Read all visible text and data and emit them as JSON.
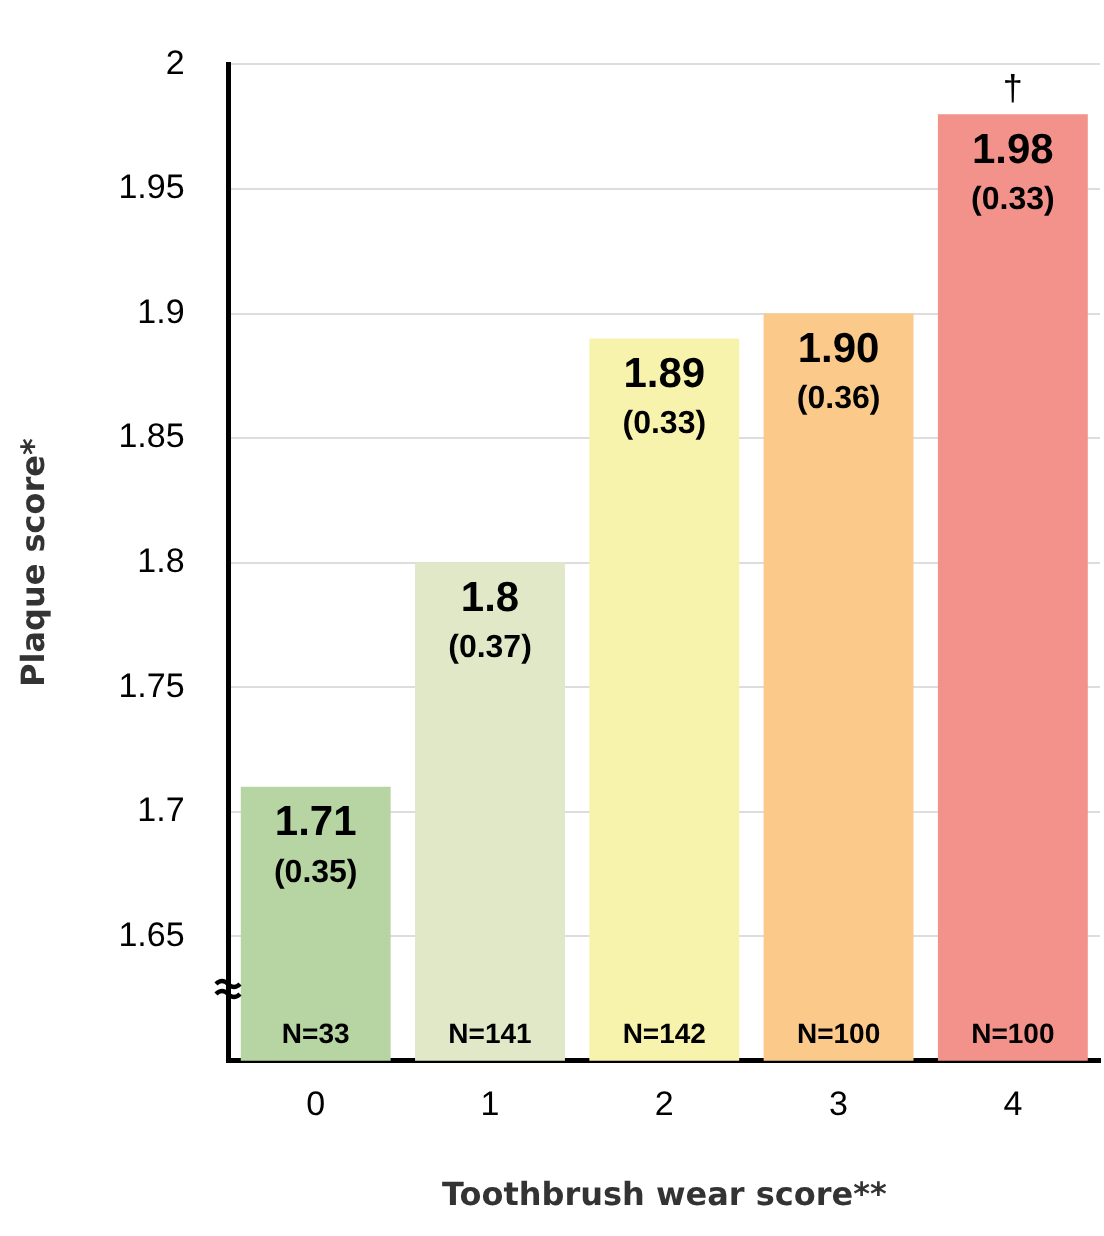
{
  "chart_data": {
    "type": "bar",
    "categories": [
      "0",
      "1",
      "2",
      "3",
      "4"
    ],
    "values": [
      1.71,
      1.8,
      1.89,
      1.9,
      1.98
    ],
    "colors": [
      "#b7d4a3",
      "#e1e8c7",
      "#f7f3ad",
      "#fbc98a",
      "#f3928a"
    ],
    "value_labels": [
      "1.71",
      "1.8",
      "1.89",
      "1.90",
      "1.98"
    ],
    "xlabel": "Toothbrush wear score**",
    "ylabel": "Plaque score*",
    "ylim": [
      1.6,
      2
    ],
    "yticks": [
      1.65,
      1.7,
      1.75,
      1.8,
      1.85,
      1.9,
      1.95,
      2
    ],
    "grid": "y",
    "legend": false,
    "annotations": [
      {
        "text": "(0.35)",
        "x": "0",
        "y": 1.71
      },
      {
        "text": "(0.37)",
        "x": "1",
        "y": 1.8
      },
      {
        "text": "(0.33)",
        "x": "2",
        "y": 1.89
      },
      {
        "text": "(0.36)",
        "x": "3",
        "y": 1.9
      },
      {
        "text": "(0.33)",
        "x": "4",
        "y": 1.98
      },
      "N=33",
      "N=141",
      "N=142",
      "N=100",
      "N=100",
      {
        "text": "†",
        "x": "4",
        "y": 1.98
      }
    ]
  }
}
